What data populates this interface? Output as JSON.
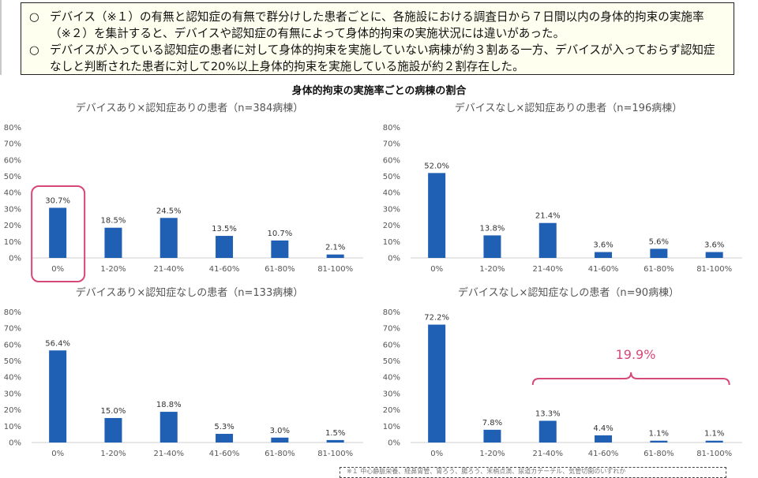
{
  "summary": {
    "bullets": [
      {
        "mark": "○",
        "text": "デバイス（※１）の有無と認知症の有無で群分けした患者ごとに、各施設における調査日から７日間以内の身体的拘束の実施率（※２）を集計すると、デバイスや認知症の有無によって身体的拘束の実施状況には違いがあった。"
      },
      {
        "mark": "○",
        "text": "デバイスが入っている認知症の患者に対して身体的拘束を実施していない病棟が約３割ある一方、デバイスが入っておらず認知症なしと判断された患者に対して20%以上身体的拘束を実施している施設が約２割存在した。"
      }
    ]
  },
  "main_title": "身体的拘束の実施率ごとの病棟の割合",
  "footnote": "※１ 中心静脈栄養、経鼻胃管、胃ろう、腸ろう、末梢点滴、尿道カテーテル、気管切開のいずれか",
  "colors": {
    "bar": "#1f5fb4",
    "highlight": "#d6477a",
    "axis": "#cfcfcf"
  },
  "highlight_box": {
    "panel": 0,
    "category": "0%"
  },
  "bracket": {
    "panel": 3,
    "from": "21-40%",
    "to": "81-100%",
    "label": "19.9%"
  },
  "chart_data": [
    {
      "type": "bar",
      "title": "デバイスあり×認知症ありの患者（n=384病棟）",
      "categories": [
        "0%",
        "1-20%",
        "21-40%",
        "41-60%",
        "61-80%",
        "81-100%"
      ],
      "values": [
        30.7,
        18.5,
        24.5,
        13.5,
        10.7,
        2.1
      ],
      "value_labels": [
        "30.7%",
        "18.5%",
        "24.5%",
        "13.5%",
        "10.7%",
        "2.1%"
      ],
      "yticks": [
        "0%",
        "10%",
        "20%",
        "30%",
        "40%",
        "50%",
        "60%",
        "70%",
        "80%"
      ],
      "ylim": [
        0,
        80
      ],
      "grid": false
    },
    {
      "type": "bar",
      "title": "デバイスなし×認知症ありの患者（n=196病棟）",
      "categories": [
        "0%",
        "1-20%",
        "21-40%",
        "41-60%",
        "61-80%",
        "81-100%"
      ],
      "values": [
        52.0,
        13.8,
        21.4,
        3.6,
        5.6,
        3.6
      ],
      "value_labels": [
        "52.0%",
        "13.8%",
        "21.4%",
        "3.6%",
        "5.6%",
        "3.6%"
      ],
      "yticks": [
        "0%",
        "10%",
        "20%",
        "30%",
        "40%",
        "50%",
        "60%",
        "70%",
        "80%"
      ],
      "ylim": [
        0,
        80
      ],
      "grid": false
    },
    {
      "type": "bar",
      "title": "デバイスあり×認知症なしの患者（n=133病棟）",
      "categories": [
        "0%",
        "1-20%",
        "21-40%",
        "41-60%",
        "61-80%",
        "81-100%"
      ],
      "values": [
        56.4,
        15.0,
        18.8,
        5.3,
        3.0,
        1.5
      ],
      "value_labels": [
        "56.4%",
        "15.0%",
        "18.8%",
        "5.3%",
        "3.0%",
        "1.5%"
      ],
      "yticks": [
        "0%",
        "10%",
        "20%",
        "30%",
        "40%",
        "50%",
        "60%",
        "70%",
        "80%"
      ],
      "ylim": [
        0,
        80
      ],
      "grid": false
    },
    {
      "type": "bar",
      "title": "デバイスなし×認知症なしの患者（n=90病棟）",
      "categories": [
        "0%",
        "1-20%",
        "21-40%",
        "41-60%",
        "61-80%",
        "81-100%"
      ],
      "values": [
        72.2,
        7.8,
        13.3,
        4.4,
        1.1,
        1.1
      ],
      "value_labels": [
        "72.2%",
        "7.8%",
        "13.3%",
        "4.4%",
        "1.1%",
        "1.1%"
      ],
      "yticks": [
        "0%",
        "10%",
        "20%",
        "30%",
        "40%",
        "50%",
        "60%",
        "70%",
        "80%"
      ],
      "ylim": [
        0,
        80
      ],
      "grid": false
    }
  ]
}
